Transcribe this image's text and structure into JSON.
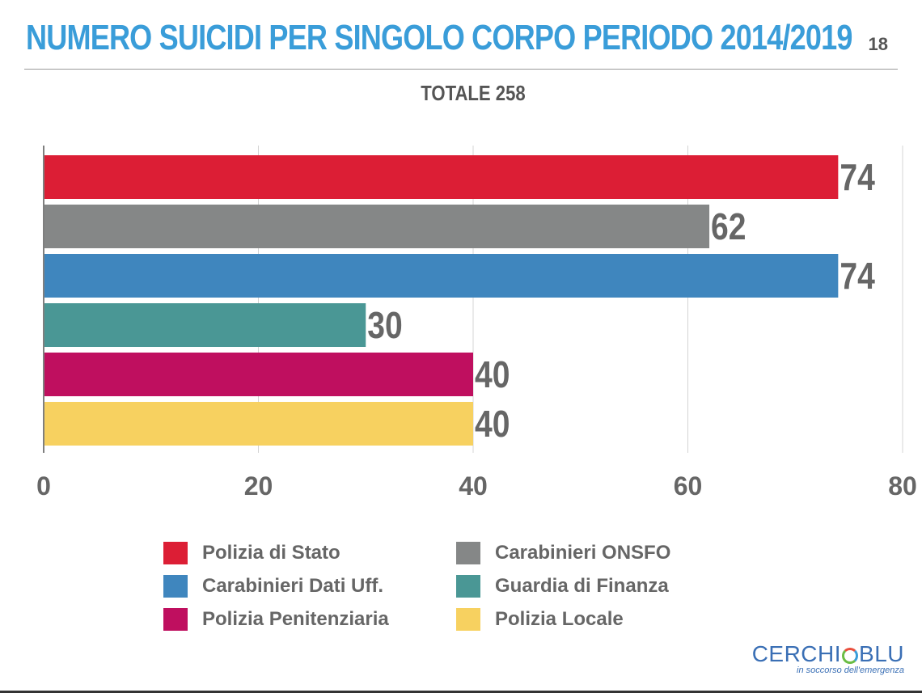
{
  "header": {
    "title": "NUMERO SUICIDI PER SINGOLO CORPO PERIODO 2014/2019",
    "page_number": "18",
    "subtitle": "TOTALE 258"
  },
  "chart_data": {
    "type": "bar",
    "orientation": "horizontal",
    "title": "NUMERO SUICIDI PER SINGOLO CORPO PERIODO 2014/2019",
    "subtitle": "TOTALE 258",
    "categories": [
      "Polizia di Stato",
      "Carabinieri ONSFO",
      "Carabinieri Dati Uff.",
      "Guardia di Finanza",
      "Polizia Penitenziaria",
      "Polizia Locale"
    ],
    "values": [
      74,
      62,
      74,
      30,
      40,
      40
    ],
    "colors": [
      "#dc1e35",
      "#858787",
      "#3f86be",
      "#4a9795",
      "#bf0f5f",
      "#f7d160"
    ],
    "xlim": [
      0,
      80
    ],
    "xticks": [
      0,
      20,
      40,
      60,
      80
    ],
    "xlabel": "",
    "ylabel": "",
    "grid": true,
    "legend_position": "bottom",
    "data_labels": [
      "74",
      "62",
      "74",
      "30",
      "40",
      "40"
    ]
  },
  "legend": {
    "items": [
      {
        "label": "Polizia di Stato",
        "color": "#dc1e35"
      },
      {
        "label": "Carabinieri ONSFO",
        "color": "#858787"
      },
      {
        "label": "Carabinieri Dati Uff.",
        "color": "#3f86be"
      },
      {
        "label": "Guardia di Finanza",
        "color": "#4a9795"
      },
      {
        "label": "Polizia Penitenziaria",
        "color": "#bf0f5f"
      },
      {
        "label": "Polizia Locale",
        "color": "#f7d160"
      }
    ]
  },
  "logo": {
    "name_part1": "CERCHI",
    "name_part2": "BLU",
    "tagline": "in soccorso dell'emergenza"
  }
}
